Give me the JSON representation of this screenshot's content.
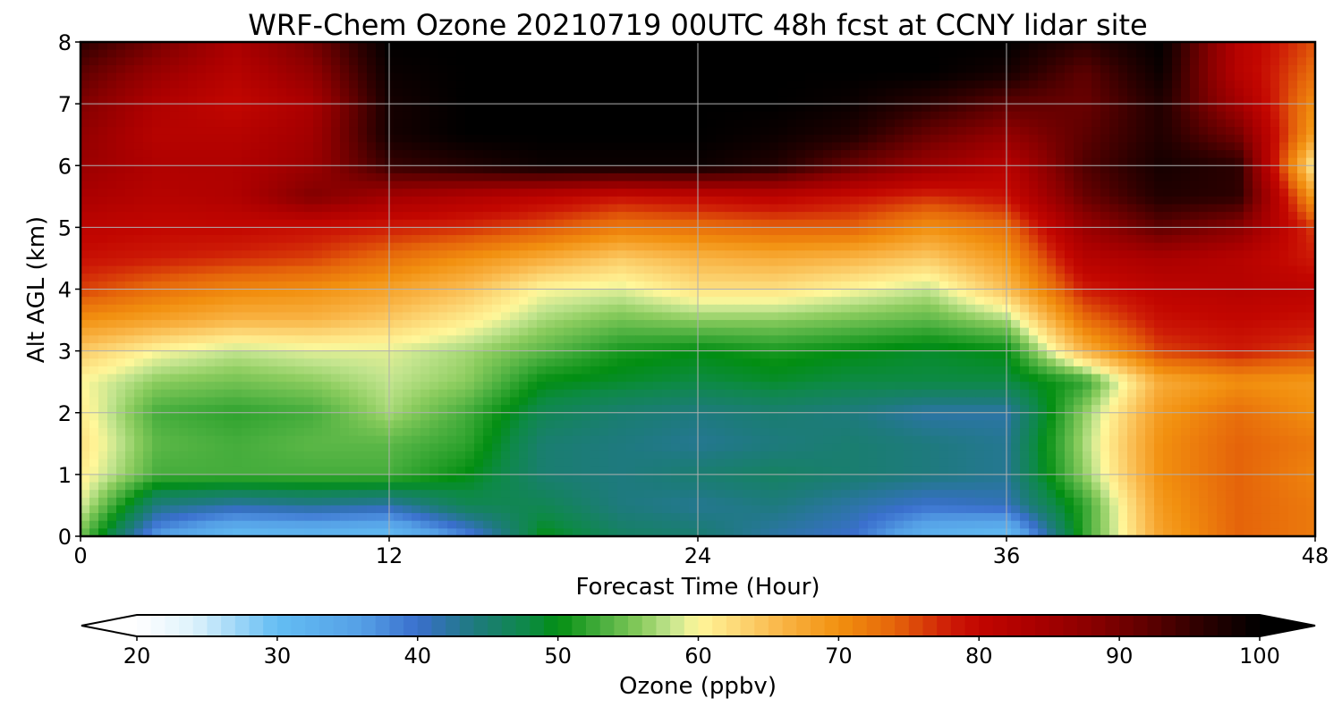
{
  "chart_data": {
    "type": "heatmap",
    "title": "WRF-Chem Ozone  20210719 00UTC 48h fcst at CCNY lidar site",
    "xlabel": "Forecast Time (Hour)",
    "ylabel": "Alt AGL (km)",
    "xlim": [
      0,
      48
    ],
    "ylim": [
      0,
      8
    ],
    "x_ticks": [
      "0",
      "12",
      "24",
      "36",
      "48"
    ],
    "y_ticks": [
      "0",
      "1",
      "2",
      "3",
      "4",
      "5",
      "6",
      "7",
      "8"
    ],
    "grid": true,
    "colorbar": {
      "label": "Ozone  (ppbv)",
      "min": 20,
      "max": 100,
      "extend": "both",
      "ticks": [
        "20",
        "30",
        "40",
        "50",
        "60",
        "70",
        "80",
        "90",
        "100"
      ]
    },
    "x": [
      0,
      3,
      6,
      9,
      12,
      15,
      18,
      21,
      24,
      27,
      30,
      33,
      36,
      39,
      42,
      45,
      48
    ],
    "y": [
      0,
      0.5,
      1,
      1.5,
      2,
      2.5,
      3,
      3.5,
      4,
      4.5,
      5,
      5.5,
      6,
      6.5,
      7,
      7.5,
      8
    ],
    "z": [
      [
        55,
        36,
        30,
        31,
        30,
        38,
        50,
        46,
        45,
        42,
        40,
        32,
        30,
        52,
        68,
        74,
        72
      ],
      [
        59,
        44,
        42,
        43,
        42,
        47,
        47,
        44,
        43,
        44,
        42,
        40,
        41,
        52,
        69,
        74,
        72
      ],
      [
        61,
        53,
        53,
        53,
        53,
        50,
        45,
        44,
        45,
        46,
        45,
        44,
        43,
        56,
        70,
        74,
        71
      ],
      [
        62,
        54,
        53,
        54,
        54,
        52,
        45,
        44,
        43,
        44,
        45,
        44,
        43,
        57,
        70,
        74,
        72
      ],
      [
        61,
        53,
        52,
        53,
        57,
        53,
        47,
        45,
        44,
        45,
        44,
        42,
        42,
        56,
        69,
        73,
        70
      ],
      [
        60,
        56,
        55,
        56,
        58,
        56,
        50,
        49,
        48,
        49,
        48,
        48,
        48,
        52,
        67,
        70,
        69
      ],
      [
        64,
        60,
        58,
        59,
        59,
        57,
        54,
        51,
        50,
        51,
        50,
        49,
        50,
        66,
        76,
        78,
        76
      ],
      [
        70,
        68,
        66,
        66,
        64,
        61,
        57,
        55,
        56,
        56,
        55,
        54,
        57,
        73,
        79,
        80,
        79
      ],
      [
        76,
        73,
        71,
        70,
        68,
        65,
        60,
        59,
        62,
        62,
        60,
        58,
        65,
        78,
        81,
        82,
        81
      ],
      [
        79,
        78,
        77,
        76,
        73,
        70,
        67,
        64,
        66,
        67,
        66,
        64,
        69,
        82,
        84,
        82,
        78
      ],
      [
        81,
        80,
        80,
        79,
        78,
        77,
        75,
        72,
        73,
        74,
        74,
        70,
        73,
        86,
        92,
        88,
        76
      ],
      [
        84,
        82,
        83,
        89,
        85,
        83,
        81,
        79,
        80,
        81,
        79,
        77,
        79,
        91,
        97,
        96,
        68
      ],
      [
        86,
        83,
        83,
        86,
        95,
        97,
        99,
        99,
        99,
        97,
        91,
        86,
        82,
        93,
        98,
        96,
        60
      ],
      [
        87,
        82,
        82,
        85,
        98,
        100,
        100,
        100,
        100,
        99,
        97,
        91,
        87,
        92,
        97,
        90,
        68
      ],
      [
        89,
        83,
        80,
        84,
        98,
        100,
        100,
        100,
        100,
        100,
        99,
        96,
        92,
        91,
        97,
        85,
        70
      ],
      [
        92,
        86,
        82,
        87,
        99,
        100,
        100,
        100,
        100,
        100,
        100,
        100,
        98,
        92,
        99,
        82,
        73
      ],
      [
        96,
        90,
        84,
        90,
        100,
        100,
        100,
        100,
        100,
        100,
        100,
        100,
        100,
        96,
        100,
        82,
        75
      ]
    ]
  },
  "colormap": {
    "under_color": "#ffffff",
    "over_color": "#000000",
    "stops": [
      [
        20,
        "#ffffff"
      ],
      [
        24,
        "#def2fc"
      ],
      [
        30,
        "#63bdf3"
      ],
      [
        36,
        "#55a0e6"
      ],
      [
        40,
        "#3a6fcd"
      ],
      [
        44,
        "#1e7a7e"
      ],
      [
        48,
        "#0d8a45"
      ],
      [
        50,
        "#028e12"
      ],
      [
        53,
        "#45ad3c"
      ],
      [
        56,
        "#8bcc5e"
      ],
      [
        58,
        "#c2e48e"
      ],
      [
        60,
        "#fff79a"
      ],
      [
        63,
        "#fcd573"
      ],
      [
        66,
        "#f9b445"
      ],
      [
        70,
        "#f2900f"
      ],
      [
        74,
        "#e5640a"
      ],
      [
        78,
        "#cd1a06"
      ],
      [
        80,
        "#c20600"
      ],
      [
        84,
        "#aa0000"
      ],
      [
        88,
        "#8a0000"
      ],
      [
        92,
        "#5e0000"
      ],
      [
        96,
        "#2b0000"
      ],
      [
        100,
        "#000000"
      ]
    ]
  }
}
